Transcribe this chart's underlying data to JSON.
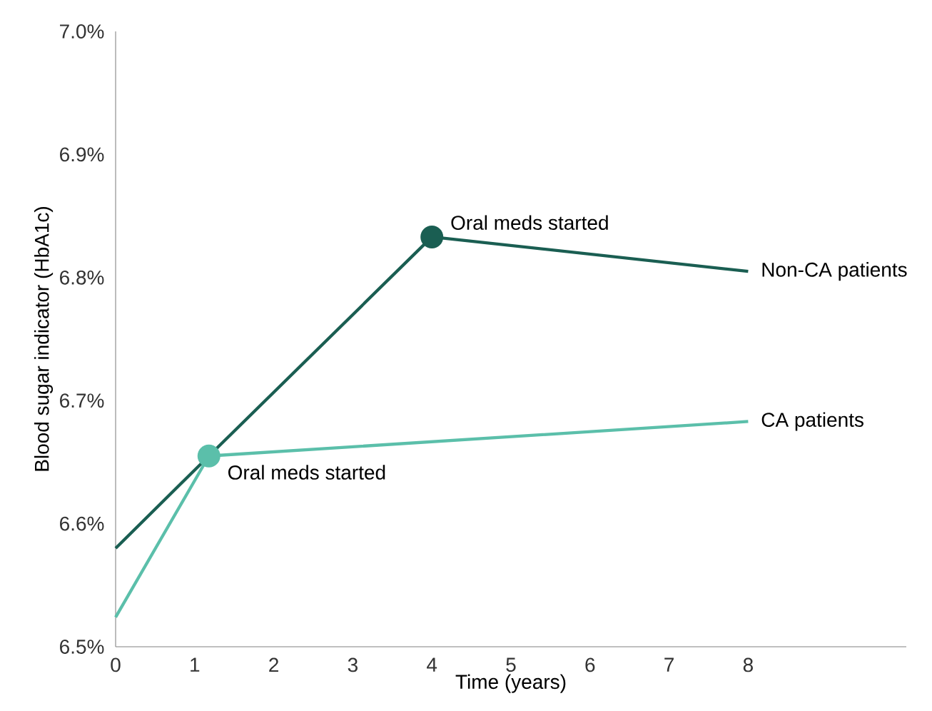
{
  "chart_data": {
    "type": "line",
    "xlabel": "Time (years)",
    "ylabel": "Blood sugar indicator (HbA1c)",
    "xlim": [
      0,
      10
    ],
    "ylim": [
      6.5,
      7.0
    ],
    "xticks": [
      0,
      1,
      2,
      3,
      4,
      5,
      6,
      7,
      8
    ],
    "yticks": [
      {
        "value": 6.5,
        "label": "6.5%"
      },
      {
        "value": 6.6,
        "label": "6.6%"
      },
      {
        "value": 6.7,
        "label": "6.7%"
      },
      {
        "value": 6.8,
        "label": "6.8%"
      },
      {
        "value": 6.9,
        "label": "6.9%"
      },
      {
        "value": 7.0,
        "label": "7.0%"
      }
    ],
    "series": [
      {
        "name": "Non-CA patients",
        "color": "#1a5e52",
        "x": [
          0,
          1.18,
          4,
          8
        ],
        "values": [
          6.58,
          6.655,
          6.833,
          6.805
        ]
      },
      {
        "name": "CA patients",
        "color": "#5bbfaa",
        "x": [
          0,
          1.18,
          8
        ],
        "values": [
          6.524,
          6.655,
          6.683
        ]
      }
    ],
    "annotations": [
      {
        "text": "Oral meds started",
        "x": 4,
        "y": 6.833
      },
      {
        "text": "Oral meds started",
        "x": 1.18,
        "y": 6.655
      }
    ],
    "grid": false,
    "legend": false,
    "marker": "none",
    "line_style": "solid"
  }
}
